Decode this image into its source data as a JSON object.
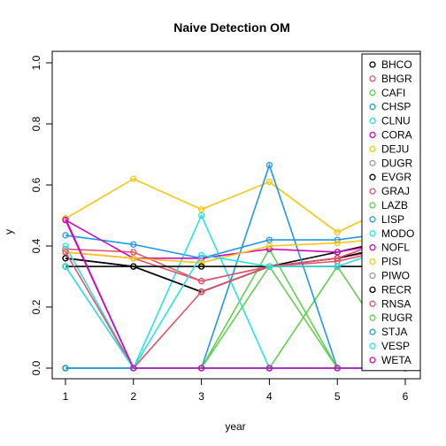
{
  "chart_data": {
    "type": "line",
    "title": "Naive Detection OM",
    "xlabel": "year",
    "ylabel": "y",
    "x": [
      1,
      2,
      3,
      4,
      5,
      6
    ],
    "xlim": [
      1,
      6
    ],
    "ylim": [
      0,
      1.0
    ],
    "xticks": [
      "1",
      "2",
      "3",
      "4",
      "5",
      "6"
    ],
    "yticks": [
      "0.0",
      "0.2",
      "0.4",
      "0.6",
      "0.8",
      "1.0"
    ],
    "grid": false,
    "legend_position": "top-right",
    "series": [
      {
        "name": "BHCO",
        "color": "#000000",
        "values": [
          0.36,
          0.333,
          0.25,
          0.333,
          0.38,
          0.43
        ]
      },
      {
        "name": "BHGR",
        "color": "#DF536B",
        "values": [
          0.39,
          0.38,
          0.285,
          0.333,
          0.36,
          0.4
        ]
      },
      {
        "name": "CAFI",
        "color": "#61D04F",
        "values": [
          0.0,
          0.0,
          0.0,
          0.39,
          0.0,
          0.0
        ]
      },
      {
        "name": "CHSP",
        "color": "#2297E6",
        "values": [
          0.435,
          0.405,
          0.36,
          0.42,
          0.42,
          0.45
        ]
      },
      {
        "name": "CLNU",
        "color": "#28E2E5",
        "values": [
          0.0,
          0.0,
          0.5,
          0.0,
          0.0,
          0.0
        ]
      },
      {
        "name": "CORA",
        "color": "#CD0BBC",
        "values": [
          0.49,
          0.0,
          0.0,
          0.0,
          0.0,
          0.0
        ]
      },
      {
        "name": "DEJU",
        "color": "#F5C710",
        "values": [
          0.49,
          0.62,
          0.52,
          0.61,
          0.445,
          0.55
        ]
      },
      {
        "name": "DUGR",
        "color": "#9E9E9E",
        "values": [
          0.333,
          0.0,
          0.0,
          0.0,
          0.0,
          0.0
        ]
      },
      {
        "name": "EVGR",
        "color": "#000000",
        "values": [
          0.36,
          0.333,
          0.25,
          0.333,
          0.36,
          0.41
        ]
      },
      {
        "name": "GRAJ",
        "color": "#DF536B",
        "values": [
          0.38,
          0.36,
          0.285,
          0.333,
          0.36,
          0.44
        ]
      },
      {
        "name": "LAZB",
        "color": "#61D04F",
        "values": [
          0.0,
          0.0,
          0.0,
          0.0,
          0.333,
          0.0
        ]
      },
      {
        "name": "LISP",
        "color": "#2297E6",
        "values": [
          0.0,
          0.0,
          0.0,
          0.665,
          0.0,
          0.0
        ]
      },
      {
        "name": "MODO",
        "color": "#28E2E5",
        "values": [
          0.4,
          0.0,
          0.0,
          0.0,
          0.0,
          0.0
        ]
      },
      {
        "name": "NOFL",
        "color": "#CD0BBC",
        "values": [
          0.485,
          0.36,
          0.36,
          0.39,
          0.38,
          0.42
        ]
      },
      {
        "name": "PISI",
        "color": "#F5C710",
        "values": [
          0.38,
          0.36,
          0.345,
          0.4,
          0.41,
          0.43
        ]
      },
      {
        "name": "PIWO",
        "color": "#9E9E9E",
        "values": [
          0.333,
          0.333,
          0.333,
          0.333,
          0.333,
          0.333
        ]
      },
      {
        "name": "RECR",
        "color": "#000000",
        "values": [
          0.333,
          0.333,
          0.333,
          0.333,
          0.333,
          0.333
        ]
      },
      {
        "name": "RNSA",
        "color": "#DF536B",
        "values": [
          0.38,
          0.0,
          0.25,
          0.333,
          0.35,
          0.4
        ]
      },
      {
        "name": "RUGR",
        "color": "#61D04F",
        "values": [
          0.0,
          0.0,
          0.0,
          0.333,
          0.0,
          0.0
        ]
      },
      {
        "name": "STJA",
        "color": "#2297E6",
        "values": [
          0.0,
          0.0,
          0.0,
          0.0,
          0.0,
          0.0
        ]
      },
      {
        "name": "VESP",
        "color": "#28E2E5",
        "values": [
          0.333,
          0.0,
          0.37,
          0.333,
          0.333,
          0.41
        ]
      },
      {
        "name": "WETA",
        "color": "#CD0BBC",
        "values": [
          0.485,
          0.0,
          0.0,
          0.0,
          0.0,
          0.0
        ]
      }
    ]
  }
}
